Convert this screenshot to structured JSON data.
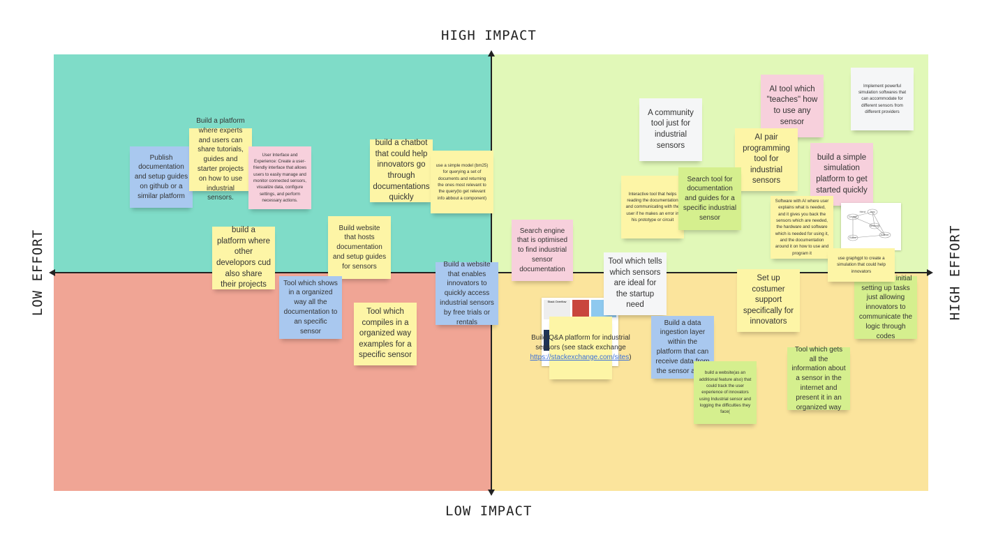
{
  "labels": {
    "top": "HIGH IMPACT",
    "bottom": "LOW IMPACT",
    "left": "LOW EFFORT",
    "right": "HIGH EFFORT"
  },
  "colors": {
    "top_left": "#7fdcc8",
    "top_right": "#e1f8b8",
    "bottom_left": "#f0a595",
    "bottom_right": "#fbe49c",
    "yellow": "#fdf5a6",
    "blue": "#a9c8ef",
    "pink": "#f7d0dc",
    "white": "#f5f6f7",
    "green": "#d5ef8e"
  },
  "notes": [
    {
      "text": "Publish documentation and setup guides on github or a similar platform",
      "color": "blue"
    },
    {
      "text": "Build a platform where experts and users can share tutorials, guides and starter projects on how to use industrial sensors.",
      "color": "yellow"
    },
    {
      "text": "User Interface and Experience: Create a user-friendly interface that allows users to easily manage and monitor connected sensors, visualize data, configure settings, and perform necessary actions.",
      "color": "pink"
    },
    {
      "text": "build a chatbot that could help innovators go through documentations quickly",
      "color": "yellow"
    },
    {
      "text": "use a simple model (bm25) for querying a set of documents and returning the ones most relevant to the query(to get relevant info abbout a component)",
      "color": "yellow"
    },
    {
      "text": "build a platform where other developors cud also share their projects",
      "color": "yellow"
    },
    {
      "text": "Build website that hosts documentation and setup guides for sensors",
      "color": "yellow"
    },
    {
      "text": "Tool which shows in a organized way all the documentation to an specific sensor",
      "color": "blue"
    },
    {
      "text": "Tool which compiles in a organized way examples for a specific sensor",
      "color": "yellow"
    },
    {
      "text": "Build a website that enables innovators to quickly access industrial sensors by free trials or rentals",
      "color": "blue"
    },
    {
      "text": "Search engine that is optimised to find industrial sensor documentation",
      "color": "pink"
    },
    {
      "text": "A community tool just for industrial sensors",
      "color": "white"
    },
    {
      "text": "AI tool which \"teaches\" how to use any sensor",
      "color": "pink"
    },
    {
      "text": "Implement powerful simulation softwares that can accommodate for different sensors from different providers",
      "color": "white"
    },
    {
      "text": "AI pair programming tool for industrial sensors",
      "color": "yellow"
    },
    {
      "text": "build a simple simulation platform to get started quickly",
      "color": "pink"
    },
    {
      "text": "Interactive tool that helps reading the documentation and communicating with the user if he makes an error in his prototype or circuit",
      "color": "yellow"
    },
    {
      "text": "Search tool for documentation and guides for a specific industrial sensor",
      "color": "green"
    },
    {
      "text": "Software with AI where user explains what is needed, and it gives you back the sensors which are needed, the hardware and software which is needed for using it, and the documentation around it on how to use and program it",
      "color": "yellow"
    },
    {
      "text": "use graphgpt to create a simulation that could help innovators",
      "color": "yellow"
    },
    {
      "text": "Tool which tells which sensors are ideal for the startup need",
      "color": "white"
    },
    {
      "text": "Set up costumer support specifically for innovators",
      "color": "yellow"
    },
    {
      "text": "automating initial setting up tasks just allowing innovators to communicate the logic through codes",
      "color": "green"
    },
    {
      "text": "Build Q&A platform for industrial sensors (see stack exchange ",
      "link": "https://stackexchange.com/sites",
      "after": ")",
      "color": "yellow"
    },
    {
      "text": "Build a data ingestion layer within the platform that can receive data from the sensor adapt",
      "color": "blue"
    },
    {
      "text": "build a website(as an additional feature also) that could track the user experience of innovators using Industrial sensor and logging the difficulties they face(",
      "color": "green"
    },
    {
      "text": "Tool which gets all the information about a sensor in the internet and present it in an organized way",
      "color": "green"
    }
  ],
  "graph_image": {
    "nodes": [
      "George",
      "Jerry",
      "Elaine",
      "Kramer",
      "Newman"
    ],
    "edge_label": "friend"
  },
  "stack_image": {
    "title": "Stack Overflow"
  }
}
